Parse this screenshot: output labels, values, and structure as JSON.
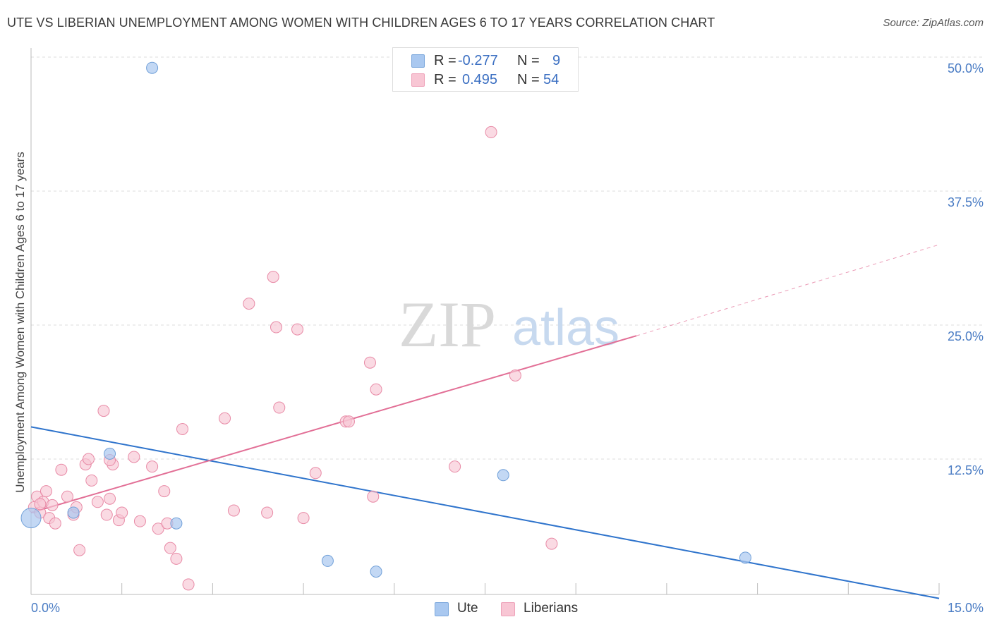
{
  "header": {
    "title": "UTE VS LIBERIAN UNEMPLOYMENT AMONG WOMEN WITH CHILDREN AGES 6 TO 17 YEARS CORRELATION CHART",
    "source": "Source: ZipAtlas.com"
  },
  "watermark": {
    "zip": "ZIP",
    "atlas": "atlas"
  },
  "legend": {
    "rows": [
      {
        "r_label": "R =",
        "r_value": "-0.277",
        "n_label": "N =",
        "n_value": "9",
        "color": "#a9c8f0"
      },
      {
        "r_label": "R =",
        "r_value": "0.495",
        "n_label": "N =",
        "n_value": "54",
        "color": "#f8b8cc"
      }
    ]
  },
  "bottom_legend": {
    "ute": "Ute",
    "liberians": "Liberians"
  },
  "colors": {
    "ute_fill": "#a9c8f0",
    "ute_stroke": "#6f9fd8",
    "ute_line": "#2f74cc",
    "lib_fill": "#f8c6d4",
    "lib_stroke": "#e88aa6",
    "lib_line": "#e26f96",
    "axis_label": "#4a7cc4",
    "grid": "#dddddd"
  },
  "chart_data": {
    "type": "scatter",
    "title": "UTE VS LIBERIAN UNEMPLOYMENT AMONG WOMEN WITH CHILDREN AGES 6 TO 17 YEARS CORRELATION CHART",
    "xlabel": "",
    "ylabel": "Unemployment Among Women with Children Ages 6 to 17 years",
    "xlim": [
      0,
      15
    ],
    "ylim": [
      0,
      50
    ],
    "x_tick_labels": [
      "0.0%",
      "15.0%"
    ],
    "y_ticks": [
      12.5,
      25,
      37.5,
      50
    ],
    "y_tick_labels": [
      "12.5%",
      "25.0%",
      "37.5%",
      "50.0%"
    ],
    "grid": true,
    "series": [
      {
        "name": "Ute",
        "r": -0.277,
        "n": 9,
        "points": [
          [
            0.0,
            7.0
          ],
          [
            0.7,
            7.5
          ],
          [
            1.3,
            13.0
          ],
          [
            2.0,
            49.0
          ],
          [
            2.4,
            6.5
          ],
          [
            4.9,
            3.0
          ],
          [
            5.7,
            2.0
          ],
          [
            7.8,
            11.0
          ],
          [
            11.8,
            3.3
          ]
        ],
        "trend": {
          "x": [
            0.0,
            15.0
          ],
          "y": [
            15.5,
            -0.5
          ]
        }
      },
      {
        "name": "Liberians",
        "r": 0.495,
        "n": 54,
        "points": [
          [
            0.05,
            8.0
          ],
          [
            0.1,
            9.0
          ],
          [
            0.15,
            7.5
          ],
          [
            0.2,
            8.5
          ],
          [
            0.25,
            9.5
          ],
          [
            0.3,
            7.0
          ],
          [
            0.35,
            8.2
          ],
          [
            0.4,
            6.5
          ],
          [
            0.5,
            11.5
          ],
          [
            0.6,
            9.0
          ],
          [
            0.7,
            7.3
          ],
          [
            0.75,
            8.0
          ],
          [
            0.8,
            4.0
          ],
          [
            0.9,
            12.0
          ],
          [
            0.95,
            12.5
          ],
          [
            1.0,
            10.5
          ],
          [
            1.1,
            8.5
          ],
          [
            1.2,
            17.0
          ],
          [
            1.25,
            7.3
          ],
          [
            1.3,
            8.8
          ],
          [
            1.35,
            12.0
          ],
          [
            1.45,
            6.8
          ],
          [
            1.5,
            7.5
          ],
          [
            1.7,
            12.7
          ],
          [
            1.8,
            6.7
          ],
          [
            2.0,
            11.8
          ],
          [
            2.1,
            6.0
          ],
          [
            2.2,
            9.5
          ],
          [
            2.25,
            6.5
          ],
          [
            2.3,
            4.2
          ],
          [
            2.4,
            3.2
          ],
          [
            2.5,
            15.3
          ],
          [
            2.6,
            0.8
          ],
          [
            3.2,
            16.3
          ],
          [
            3.35,
            7.7
          ],
          [
            3.6,
            27.0
          ],
          [
            3.9,
            7.5
          ],
          [
            4.0,
            29.5
          ],
          [
            4.05,
            24.8
          ],
          [
            4.1,
            17.3
          ],
          [
            4.4,
            24.6
          ],
          [
            4.5,
            7.0
          ],
          [
            4.7,
            11.2
          ],
          [
            5.2,
            16.0
          ],
          [
            5.25,
            16.0
          ],
          [
            5.6,
            21.5
          ],
          [
            5.65,
            9.0
          ],
          [
            5.7,
            19.0
          ],
          [
            7.0,
            11.8
          ],
          [
            7.6,
            43.0
          ],
          [
            8.0,
            20.3
          ],
          [
            8.6,
            4.6
          ],
          [
            0.15,
            8.3
          ],
          [
            1.3,
            12.4
          ]
        ],
        "trend": {
          "x": [
            0.0,
            10.0
          ],
          "y": [
            7.5,
            24.0
          ]
        },
        "trend_extension": {
          "x": [
            10.0,
            15.0
          ],
          "y": [
            24.0,
            32.5
          ]
        }
      }
    ]
  }
}
